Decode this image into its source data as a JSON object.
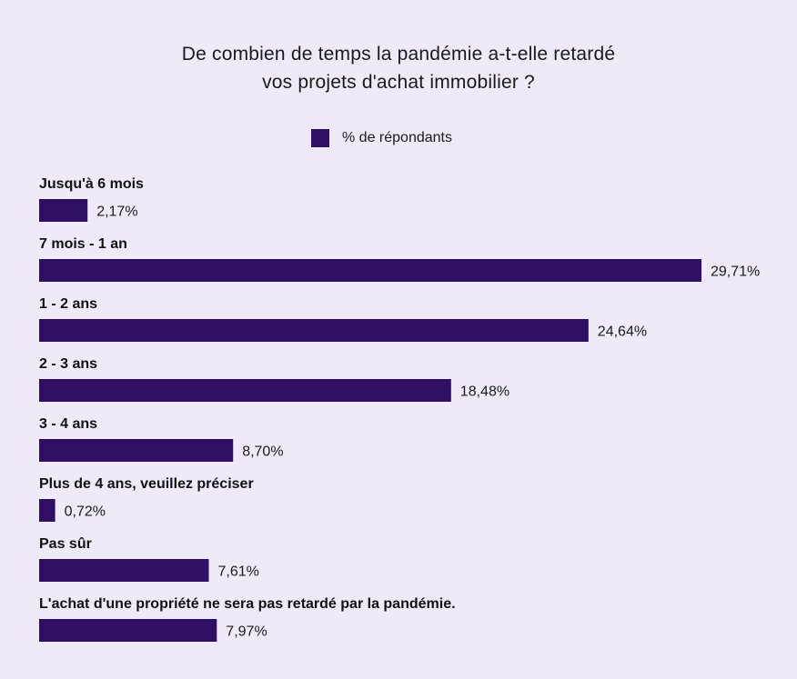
{
  "chart_data": {
    "type": "bar",
    "orientation": "horizontal",
    "title_lines": [
      "De combien de temps la pandémie a-t-elle retardé",
      "vos projets d'achat immobilier ?"
    ],
    "legend": [
      "% de répondants"
    ],
    "bar_color": "#2f0f63",
    "background_color": "#efe9f8",
    "categories": [
      "Jusqu'à 6 mois",
      "7 mois - 1 an",
      "1 - 2 ans",
      "2 - 3 ans",
      "3 - 4 ans",
      "Plus de 4 ans, veuillez préciser",
      "Pas sûr",
      "L'achat d'une propriété ne sera pas retardé par la pandémie."
    ],
    "values": [
      2.17,
      29.71,
      24.64,
      18.48,
      8.7,
      0.72,
      7.61,
      7.97
    ],
    "value_labels": [
      "2,17%",
      "29,71%",
      "24,64%",
      "18,48%",
      "8,70%",
      "0,72%",
      "7,61%",
      "7,97%"
    ],
    "xlim": [
      0,
      29.71
    ],
    "unit": "%"
  }
}
